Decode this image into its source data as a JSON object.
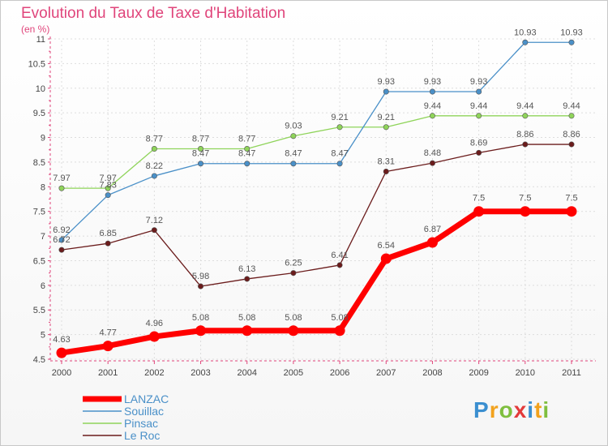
{
  "header": {
    "title": "Evolution du Taux de Taxe d'Habitation",
    "subtitle": "(en %)"
  },
  "brand": {
    "logo_text": "Proxiti"
  },
  "chart_data": {
    "type": "line",
    "x": [
      "2000",
      "2001",
      "2002",
      "2003",
      "2004",
      "2005",
      "2006",
      "2007",
      "2008",
      "2009",
      "2010",
      "2011"
    ],
    "ylim": [
      4.5,
      11
    ],
    "yticks": [
      "4.5",
      "5",
      "5.5",
      "6",
      "6.5",
      "7",
      "7.5",
      "8",
      "8.5",
      "9",
      "9.5",
      "10",
      "10.5",
      "11"
    ],
    "grid": true,
    "legend_position": "bottom-left",
    "series": [
      {
        "name": "LANZAC",
        "color": "#ff0000",
        "values": [
          4.63,
          4.77,
          4.96,
          5.08,
          5.08,
          5.08,
          5.08,
          6.54,
          6.87,
          7.5,
          7.5,
          7.5
        ],
        "labels": [
          "4.63",
          "4.77",
          "4.96",
          "5.08",
          "5.08",
          "5.08",
          "5.08",
          "6.54",
          "6.87",
          "7.5",
          "7.5",
          "7.5"
        ]
      },
      {
        "name": "Souillac",
        "color": "#4a90c8",
        "values": [
          6.92,
          7.83,
          8.22,
          8.47,
          8.47,
          8.47,
          8.47,
          9.93,
          9.93,
          9.93,
          10.93,
          10.93
        ],
        "labels": [
          "6.92",
          "7.83",
          "8.22",
          "8.47",
          "8.47",
          "8.47",
          "8.47",
          "9.93",
          "9.93",
          "9.93",
          "10.93",
          "10.93"
        ]
      },
      {
        "name": "Pinsac",
        "color": "#8fd45a",
        "values": [
          7.97,
          7.97,
          8.77,
          8.77,
          8.77,
          9.03,
          9.21,
          9.21,
          9.44,
          9.44,
          9.44,
          9.44
        ],
        "labels": [
          "7.97",
          "7.97",
          "8.77",
          "8.77",
          "8.77",
          "9.03",
          "9.21",
          "9.21",
          "9.44",
          "9.44",
          "9.44",
          "9.44"
        ]
      },
      {
        "name": "Le Roc",
        "color": "#6b1c1c",
        "values": [
          6.72,
          6.85,
          7.12,
          5.98,
          6.13,
          6.25,
          6.41,
          8.31,
          8.48,
          8.69,
          8.86,
          8.86
        ],
        "labels": [
          "6.72",
          "6.85",
          "7.12",
          "5.98",
          "6.13",
          "6.25",
          "6.41",
          "8.31",
          "8.48",
          "8.69",
          "8.86",
          "8.86"
        ]
      }
    ]
  }
}
